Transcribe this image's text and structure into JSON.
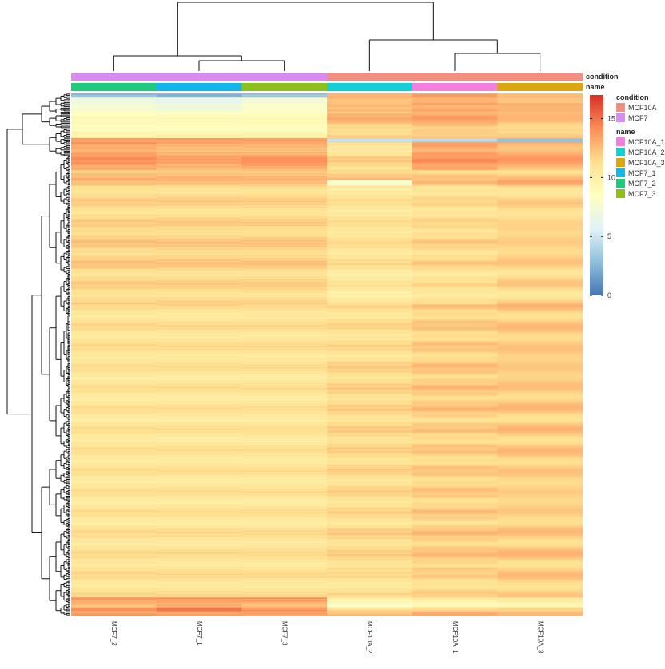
{
  "chart_data": {
    "type": "heatmap",
    "title": "",
    "columns": [
      "MCF7_2",
      "MCF7_1",
      "MCF7_3",
      "MCF10A_2",
      "MCF10A_1",
      "MCF10A_3"
    ],
    "annotation_tracks": [
      {
        "title": "condition",
        "values": [
          "MCF7",
          "MCF7",
          "MCF7",
          "MCF10A",
          "MCF10A",
          "MCF10A"
        ],
        "legend": [
          {
            "label": "MCF10A",
            "color": "#F28E7F"
          },
          {
            "label": "MCF7",
            "color": "#D98CF0"
          }
        ]
      },
      {
        "title": "name",
        "values": [
          "MCF7_2",
          "MCF7_1",
          "MCF7_3",
          "MCF10A_2",
          "MCF10A_1",
          "MCF10A_3"
        ],
        "legend": [
          {
            "label": "MCF10A_1",
            "color": "#F47FDC"
          },
          {
            "label": "MCF10A_2",
            "color": "#13CFD6"
          },
          {
            "label": "MCF10A_3",
            "color": "#DAA80E"
          },
          {
            "label": "MCF7_1",
            "color": "#10B7E9"
          },
          {
            "label": "MCF7_2",
            "color": "#1ECB7D"
          },
          {
            "label": "MCF7_3",
            "color": "#8DC11A"
          }
        ]
      }
    ],
    "color_scale": {
      "min": 0,
      "max": 17,
      "ticks": [
        0,
        5,
        10,
        15
      ],
      "stops": [
        "#4575B4",
        "#91BFDB",
        "#E0F3F8",
        "#FFFFBF",
        "#FEE090",
        "#FC8D59",
        "#D73027"
      ]
    },
    "row_blocks": [
      {
        "rows": 3,
        "values": [
          2.5,
          2.0,
          2.8,
          12.5,
          13.0,
          12.5
        ]
      },
      {
        "rows": 4,
        "values": [
          6.5,
          6.0,
          7.0,
          12.0,
          12.5,
          12.0
        ]
      },
      {
        "rows": 6,
        "values": [
          8.0,
          7.5,
          8.5,
          13.0,
          13.5,
          13.0
        ]
      },
      {
        "rows": 8,
        "values": [
          8.5,
          8.5,
          8.5,
          12.5,
          13.0,
          12.5
        ]
      },
      {
        "rows": 6,
        "values": [
          9.0,
          9.0,
          9.0,
          12.0,
          12.5,
          12.0
        ]
      },
      {
        "rows": 5,
        "values": [
          9.5,
          9.5,
          9.5,
          11.5,
          12.0,
          11.5
        ]
      },
      {
        "rows": 3,
        "values": [
          13.0,
          13.0,
          13.0,
          4.0,
          3.5,
          2.5
        ]
      },
      {
        "rows": 10,
        "values": [
          13.5,
          13.0,
          13.0,
          11.0,
          13.5,
          13.0
        ]
      },
      {
        "rows": 10,
        "values": [
          13.5,
          13.0,
          13.5,
          11.5,
          13.5,
          13.0
        ]
      },
      {
        "rows": 7,
        "values": [
          12.5,
          12.5,
          12.5,
          12.0,
          12.0,
          12.0
        ]
      },
      {
        "rows": 4,
        "values": [
          12.0,
          12.0,
          12.0,
          7.5,
          12.0,
          12.5
        ]
      },
      {
        "rows": 30,
        "values": [
          11.5,
          11.5,
          11.5,
          10.8,
          11.2,
          11.5
        ]
      },
      {
        "rows": 30,
        "values": [
          11.8,
          11.8,
          11.8,
          11.0,
          11.5,
          11.8
        ]
      },
      {
        "rows": 25,
        "values": [
          11.5,
          11.5,
          11.5,
          10.5,
          11.0,
          11.5
        ]
      },
      {
        "rows": 40,
        "values": [
          11.0,
          11.0,
          11.0,
          11.2,
          11.8,
          12.0
        ]
      },
      {
        "rows": 40,
        "values": [
          10.8,
          10.8,
          10.8,
          11.5,
          12.0,
          12.0
        ]
      },
      {
        "rows": 40,
        "values": [
          10.8,
          10.8,
          10.8,
          11.5,
          11.8,
          12.0
        ]
      },
      {
        "rows": 40,
        "values": [
          10.8,
          10.8,
          10.8,
          11.3,
          11.8,
          11.8
        ]
      },
      {
        "rows": 30,
        "values": [
          11.0,
          11.0,
          11.0,
          11.5,
          12.0,
          12.0
        ]
      },
      {
        "rows": 20,
        "values": [
          11.0,
          11.0,
          11.0,
          11.0,
          11.5,
          11.8
        ]
      },
      {
        "rows": 4,
        "values": [
          13.5,
          13.5,
          13.5,
          9.5,
          10.0,
          10.0
        ]
      },
      {
        "rows": 3,
        "values": [
          13.0,
          13.5,
          13.0,
          8.5,
          9.5,
          9.5
        ]
      },
      {
        "rows": 3,
        "values": [
          14.0,
          15.0,
          14.0,
          11.5,
          12.0,
          12.0
        ]
      },
      {
        "rows": 3,
        "values": [
          13.0,
          13.0,
          13.0,
          12.0,
          12.5,
          12.5
        ]
      }
    ]
  }
}
